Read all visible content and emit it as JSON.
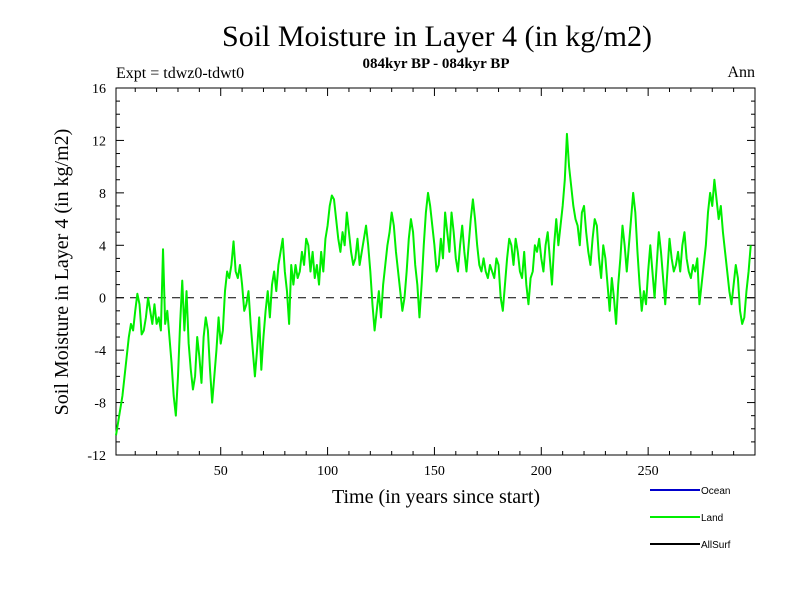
{
  "chart_data": {
    "type": "line",
    "title": "Soil Moisture in Layer 4 (in kg/m2)",
    "subtitle": "084kyr BP - 084kyr BP",
    "experiment_label": "Expt = tdwz0-tdwt0",
    "period_label": "Ann",
    "xlabel": "Time (in years since start)",
    "ylabel": "Soil Moisture in Layer 4 (in kg/m2)",
    "xlim": [
      1,
      300
    ],
    "ylim": [
      -12,
      16
    ],
    "x_ticks": [
      50,
      100,
      150,
      200,
      250
    ],
    "y_ticks": [
      -12,
      -8,
      -4,
      0,
      4,
      8,
      12,
      16
    ],
    "zero_line": "dashed",
    "grid": false,
    "legend_position": "bottom-right",
    "legend": [
      {
        "name": "Ocean",
        "color": "#0000cc"
      },
      {
        "name": "Land",
        "color": "#00ee00"
      },
      {
        "name": "AllSurf",
        "color": "#000000"
      }
    ],
    "series": [
      {
        "name": "Land",
        "color": "#00ee00",
        "x_start": 1,
        "x_step": 1,
        "values": [
          -10.5,
          -9.5,
          -8.5,
          -7.5,
          -6.0,
          -4.5,
          -3.0,
          -2.0,
          -2.5,
          -1.0,
          0.3,
          -0.5,
          -2.8,
          -2.5,
          -1.5,
          0.0,
          -1.0,
          -2.0,
          -0.5,
          -2.0,
          -1.5,
          -2.5,
          3.7,
          -2.0,
          -1.0,
          -3.0,
          -5.0,
          -7.5,
          -9.0,
          -6.0,
          -2.0,
          1.3,
          -2.5,
          0.5,
          -3.5,
          -5.5,
          -7.0,
          -6.0,
          -3.0,
          -4.5,
          -6.5,
          -3.0,
          -1.5,
          -2.5,
          -5.5,
          -8.0,
          -6.0,
          -4.0,
          -1.5,
          -3.5,
          -2.5,
          0.5,
          2.0,
          1.5,
          2.5,
          4.3,
          2.0,
          1.5,
          2.5,
          1.0,
          -1.0,
          -0.5,
          0.5,
          -2.0,
          -4.0,
          -6.0,
          -4.0,
          -1.5,
          -5.5,
          -3.0,
          -1.0,
          0.5,
          -1.5,
          1.0,
          2.0,
          0.5,
          2.5,
          3.5,
          4.5,
          2.0,
          0.5,
          -2.0,
          2.5,
          1.0,
          2.5,
          1.5,
          2.0,
          3.5,
          2.5,
          4.5,
          4.0,
          2.0,
          3.5,
          1.5,
          2.5,
          1.0,
          3.5,
          2.0,
          4.5,
          5.5,
          7.0,
          7.8,
          7.5,
          6.0,
          4.5,
          3.5,
          5.0,
          4.0,
          6.5,
          5.0,
          3.5,
          2.5,
          3.0,
          4.5,
          2.5,
          3.5,
          4.5,
          5.5,
          4.0,
          2.0,
          -0.5,
          -2.5,
          -1.0,
          0.5,
          -1.5,
          1.0,
          2.5,
          4.0,
          5.0,
          6.5,
          5.5,
          3.5,
          2.0,
          0.5,
          -1.0,
          0.0,
          2.0,
          4.5,
          6.0,
          5.0,
          2.5,
          1.0,
          -1.5,
          1.0,
          4.0,
          6.5,
          8.0,
          7.0,
          5.5,
          4.0,
          2.0,
          2.5,
          4.5,
          3.0,
          6.5,
          5.0,
          3.5,
          6.5,
          5.0,
          3.0,
          2.0,
          4.0,
          5.5,
          3.5,
          2.0,
          4.0,
          6.0,
          7.5,
          6.0,
          4.0,
          2.5,
          2.0,
          3.0,
          2.0,
          1.5,
          2.5,
          2.0,
          1.5,
          3.0,
          2.5,
          0.0,
          -1.0,
          1.0,
          3.0,
          4.5,
          4.0,
          2.5,
          4.5,
          3.5,
          2.0,
          1.5,
          3.5,
          1.0,
          -0.5,
          1.5,
          2.0,
          4.0,
          3.5,
          4.5,
          3.0,
          2.0,
          4.0,
          5.0,
          3.0,
          1.0,
          4.0,
          6.0,
          4.0,
          5.5,
          7.0,
          9.0,
          12.5,
          10.0,
          8.5,
          7.0,
          6.0,
          5.5,
          4.0,
          6.5,
          7.0,
          5.0,
          3.5,
          2.5,
          4.5,
          6.0,
          5.5,
          3.0,
          1.5,
          4.0,
          3.0,
          1.0,
          -1.0,
          1.5,
          0.0,
          -2.0,
          1.0,
          3.0,
          5.5,
          4.0,
          2.0,
          4.0,
          6.0,
          8.0,
          6.5,
          3.5,
          1.0,
          -1.0,
          0.5,
          -0.5,
          2.0,
          4.0,
          2.0,
          0.0,
          2.5,
          5.0,
          3.5,
          1.5,
          -0.5,
          2.0,
          4.5,
          3.0,
          2.0,
          2.5,
          3.5,
          2.0,
          4.0,
          5.0,
          3.0,
          2.0,
          1.5,
          2.5,
          2.0,
          3.0,
          -0.5,
          1.0,
          2.5,
          4.0,
          6.5,
          8.0,
          7.0,
          9.0,
          7.5,
          6.0,
          7.0,
          5.0,
          3.5,
          2.0,
          0.5,
          -0.5,
          1.0,
          2.5,
          1.5,
          -1.0,
          -2.0,
          -1.5,
          0.5,
          2.0,
          4.0
        ]
      }
    ]
  }
}
